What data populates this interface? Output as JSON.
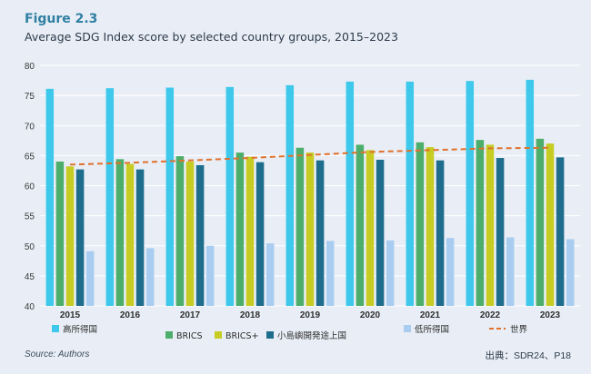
{
  "figure": {
    "label": "Figure 2.3",
    "title": "Average SDG Index score by selected country groups, 2015–2023",
    "source": "Source: Authors",
    "citation": "出典：SDR24、P18"
  },
  "colors": {
    "background": "#e9eef6",
    "grid": "#ffffff",
    "high_income": "#3ec8ec",
    "brics": "#4dae6c",
    "brics_plus": "#c6cc22",
    "sids": "#1e6d8c",
    "low_income": "#a9cdf0",
    "world": "#e0712c"
  },
  "chart_data": {
    "type": "bar",
    "title": "Average SDG Index score by selected country groups, 2015–2023",
    "categories": [
      "2015",
      "2016",
      "2017",
      "2018",
      "2019",
      "2020",
      "2021",
      "2022",
      "2023"
    ],
    "ylim": [
      40,
      80
    ],
    "yticks": [
      40,
      45,
      50,
      55,
      60,
      65,
      70,
      75,
      80
    ],
    "grid": true,
    "legend_position": "bottom",
    "series": [
      {
        "name": "高所得国",
        "color": "#3ec8ec",
        "values": [
          76.1,
          76.2,
          76.3,
          76.4,
          76.7,
          77.3,
          77.3,
          77.4,
          77.6
        ]
      },
      {
        "name": "BRICS",
        "color": "#4dae6c",
        "values": [
          64.0,
          64.4,
          64.9,
          65.5,
          66.3,
          66.8,
          67.2,
          67.6,
          67.8
        ]
      },
      {
        "name": "BRICS+",
        "color": "#c6cc22",
        "values": [
          63.2,
          63.6,
          64.0,
          64.8,
          65.5,
          65.9,
          66.4,
          66.8,
          67.0
        ]
      },
      {
        "name": "小島嶼開発途上国",
        "color": "#1e6d8c",
        "values": [
          62.7,
          62.7,
          63.4,
          63.9,
          64.2,
          64.3,
          64.2,
          64.6,
          64.7
        ]
      },
      {
        "name": "低所得国",
        "color": "#a9cdf0",
        "values": [
          49.1,
          49.6,
          50.0,
          50.4,
          50.8,
          50.9,
          51.3,
          51.4,
          51.1
        ]
      }
    ],
    "line_series": [
      {
        "name": "世界",
        "color": "#e0712c",
        "style": "dashed",
        "values": [
          63.5,
          63.8,
          64.2,
          64.6,
          65.1,
          65.6,
          65.9,
          66.2,
          66.3
        ]
      }
    ]
  }
}
